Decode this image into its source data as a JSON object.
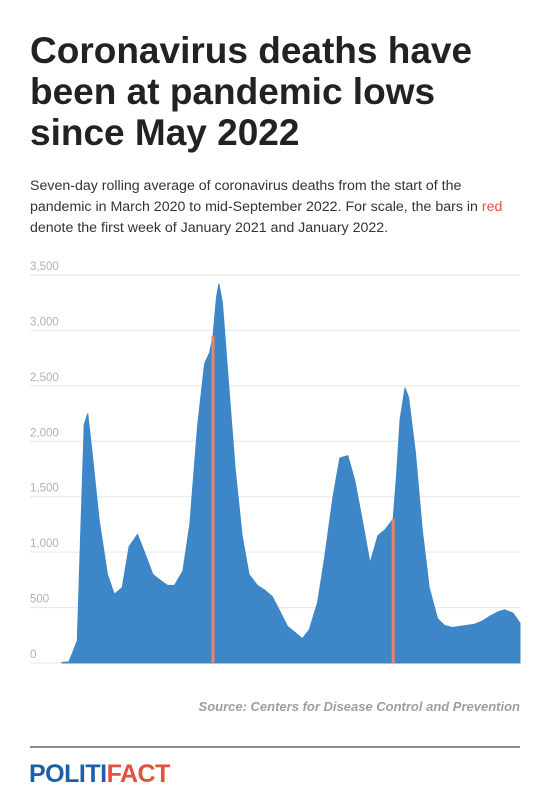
{
  "headline": "Coronavirus deaths have been at pandemic lows since May 2022",
  "subtitle": {
    "before": "Seven-day rolling average of coronavirus deaths from the start of the pandemic in March 2020 to mid-September 2022. For scale, the bars in ",
    "highlight": "red",
    "after": " denote the first week of January 2021 and January 2022."
  },
  "source": "Source: Centers for Disease Control and Prevention",
  "logo": {
    "part1": "POLITI",
    "part2": "FACT"
  },
  "colors": {
    "area": "#3d87c8",
    "highlight": "#e8826a",
    "grid": "#e6e6e6",
    "tick": "#b0b0b0",
    "logo_blue": "#1d5fa8",
    "logo_red": "#e0533b"
  },
  "chart_data": {
    "type": "area",
    "title": "",
    "xlabel": "",
    "ylabel": "",
    "ylim": [
      0,
      3500
    ],
    "yticks": [
      0,
      500,
      1000,
      1500,
      2000,
      2500,
      3000,
      3500
    ],
    "ytick_labels": [
      "0",
      "500",
      "1,000",
      "1,500",
      "2,000",
      "2,500",
      "3,000",
      "3,500"
    ],
    "grid": true,
    "x": [
      "2020-03-01",
      "2020-03-15",
      "2020-04-01",
      "2020-04-08",
      "2020-04-15",
      "2020-04-22",
      "2020-05-01",
      "2020-05-15",
      "2020-06-01",
      "2020-06-15",
      "2020-07-01",
      "2020-07-15",
      "2020-08-01",
      "2020-08-15",
      "2020-09-01",
      "2020-09-15",
      "2020-10-01",
      "2020-10-15",
      "2020-11-01",
      "2020-11-15",
      "2020-12-01",
      "2020-12-15",
      "2020-12-25",
      "2021-01-01",
      "2021-01-08",
      "2021-01-13",
      "2021-01-20",
      "2021-02-01",
      "2021-02-15",
      "2021-03-01",
      "2021-03-15",
      "2021-04-01",
      "2021-04-15",
      "2021-05-01",
      "2021-05-15",
      "2021-06-01",
      "2021-06-15",
      "2021-07-01",
      "2021-07-15",
      "2021-08-01",
      "2021-08-15",
      "2021-09-01",
      "2021-09-15",
      "2021-10-01",
      "2021-10-15",
      "2021-11-01",
      "2021-11-15",
      "2021-12-01",
      "2021-12-15",
      "2022-01-01",
      "2022-01-08",
      "2022-01-15",
      "2022-01-25",
      "2022-02-01",
      "2022-02-15",
      "2022-03-01",
      "2022-03-15",
      "2022-04-01",
      "2022-04-15",
      "2022-05-01",
      "2022-05-15",
      "2022-06-01",
      "2022-06-15",
      "2022-07-01",
      "2022-07-15",
      "2022-08-01",
      "2022-08-15",
      "2022-09-01",
      "2022-09-15"
    ],
    "values": [
      5,
      10,
      200,
      1200,
      2150,
      2250,
      1900,
      1300,
      800,
      620,
      680,
      1050,
      1160,
      1000,
      800,
      750,
      700,
      700,
      830,
      1250,
      2150,
      2700,
      2800,
      2950,
      3300,
      3420,
      3250,
      2550,
      1750,
      1150,
      800,
      700,
      660,
      600,
      480,
      330,
      280,
      220,
      300,
      550,
      950,
      1500,
      1850,
      1870,
      1650,
      1250,
      900,
      1150,
      1200,
      1300,
      1700,
      2200,
      2480,
      2400,
      1900,
      1200,
      680,
      400,
      340,
      320,
      330,
      340,
      350,
      380,
      420,
      460,
      480,
      450,
      360
    ],
    "highlight_bars": [
      {
        "x": "2021-01-01",
        "value": 2950
      },
      {
        "x": "2022-01-01",
        "value": 1300
      }
    ]
  }
}
